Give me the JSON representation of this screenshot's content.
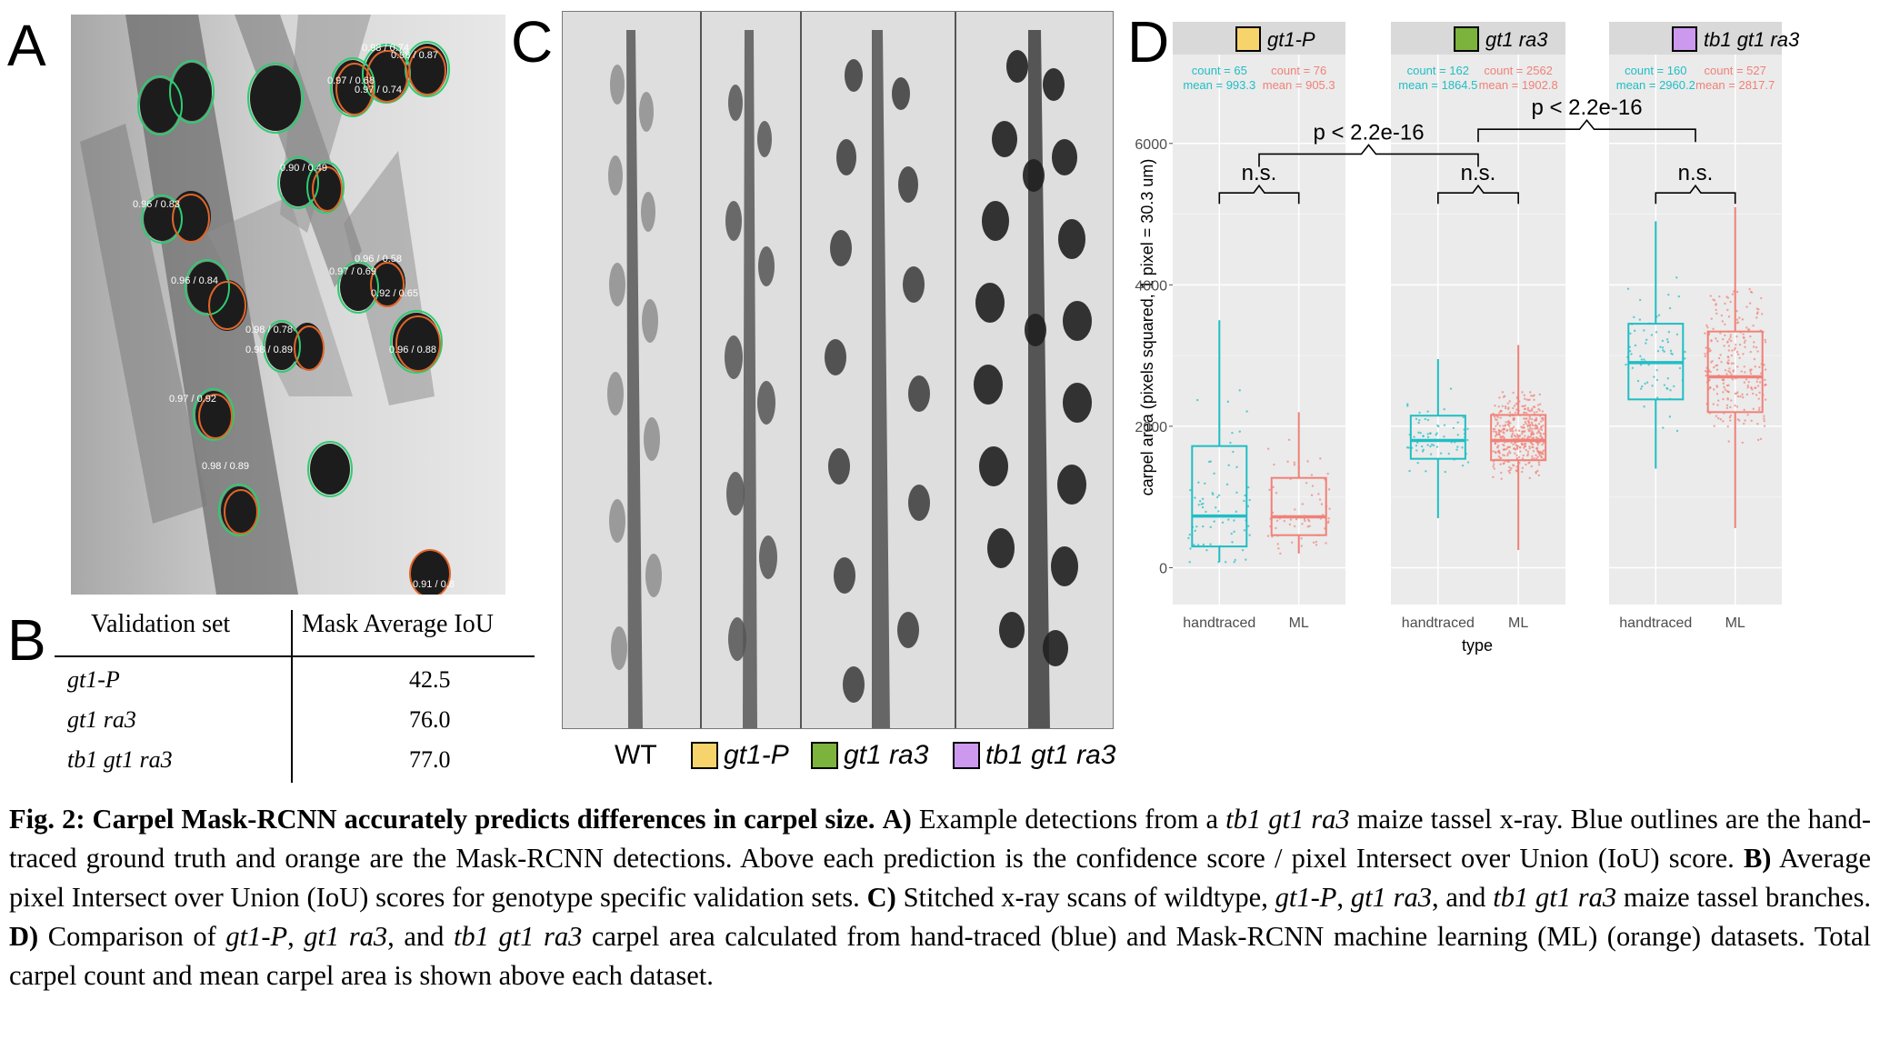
{
  "panels": {
    "a": "A",
    "b": "B",
    "c": "C",
    "d": "D"
  },
  "panelA": {
    "detections": [
      {
        "label": "0.98 / 0.74"
      },
      {
        "label": "0.98 / 0.87"
      },
      {
        "label": "0.97 / 0.68"
      },
      {
        "label": "0.97 / 0.74"
      },
      {
        "label": "0.90 / 0.49"
      },
      {
        "label": "0.96 / 0.83"
      },
      {
        "label": "0.96 / 0.84"
      },
      {
        "label": "0.96 / 0.58"
      },
      {
        "label": "0.97 / 0.69"
      },
      {
        "label": "0.92 / 0.65"
      },
      {
        "label": "0.98 / 0.78"
      },
      {
        "label": "0.98 / 0.89"
      },
      {
        "label": "0.96 / 0.88"
      },
      {
        "label": "0.97 / 0.92"
      },
      {
        "label": "0.98 / 0.89"
      },
      {
        "label": "0.91 / 0.8"
      }
    ]
  },
  "panelB": {
    "headers": [
      "Validation set",
      "Mask Average IoU"
    ],
    "rows": [
      {
        "set": "gt1-P",
        "iou": "42.5"
      },
      {
        "set": "gt1 ra3",
        "iou": "76.0"
      },
      {
        "set": "tb1 gt1 ra3",
        "iou": "77.0"
      }
    ]
  },
  "panelC": {
    "legend": [
      {
        "label": "WT",
        "color": ""
      },
      {
        "label": "gt1-P",
        "color": "#f7d36b"
      },
      {
        "label": "gt1 ra3",
        "color": "#7cb33c"
      },
      {
        "label": "tb1 gt1 ra3",
        "color": "#cc99ee"
      }
    ]
  },
  "chart_data": {
    "type": "boxplot",
    "title": "",
    "xlabel": "type",
    "ylabel": "carpel area (pixels squared, 1 pixel = 30.3 um)",
    "ylim": [
      -200,
      7000
    ],
    "yticks": [
      0,
      2000,
      4000,
      6000
    ],
    "categories": [
      "handtraced",
      "ML"
    ],
    "colors": {
      "handtraced": "#1fbec4",
      "ML": "#f08178"
    },
    "facets": [
      {
        "name": "gt1-P",
        "color": "#f7d36b",
        "stats": [
          {
            "type": "handtraced",
            "count_text": "count = 65",
            "mean_text": "mean = 993.3",
            "q1": 300,
            "median": 730,
            "q3": 1720,
            "whisker_low": 80,
            "whisker_high": 3500
          },
          {
            "type": "ML",
            "count_text": "count = 76",
            "mean_text": "mean = 905.3",
            "q1": 460,
            "median": 720,
            "q3": 1270,
            "whisker_low": 200,
            "whisker_high": 2200
          }
        ],
        "tests": [
          {
            "label": "n.s."
          }
        ]
      },
      {
        "name": "gt1 ra3",
        "color": "#7cb33c",
        "stats": [
          {
            "type": "handtraced",
            "count_text": "count = 162",
            "mean_text": "mean = 1864.5",
            "q1": 1540,
            "median": 1800,
            "q3": 2150,
            "whisker_low": 700,
            "whisker_high": 2950
          },
          {
            "type": "ML",
            "count_text": "count = 2562",
            "mean_text": "mean = 1902.8",
            "q1": 1520,
            "median": 1800,
            "q3": 2160,
            "whisker_low": 250,
            "whisker_high": 3150
          }
        ],
        "tests": [
          {
            "label": "n.s."
          }
        ]
      },
      {
        "name": "tb1 gt1 ra3",
        "color": "#cc99ee",
        "stats": [
          {
            "type": "handtraced",
            "count_text": "count = 160",
            "mean_text": "mean = 2960.2",
            "q1": 2380,
            "median": 2900,
            "q3": 3450,
            "whisker_low": 1400,
            "whisker_high": 4900
          },
          {
            "type": "ML",
            "count_text": "count = 527",
            "mean_text": "mean = 2817.7",
            "q1": 2200,
            "median": 2700,
            "q3": 3340,
            "whisker_low": 560,
            "whisker_high": 5100
          }
        ],
        "tests": [
          {
            "label": "n.s."
          }
        ]
      }
    ],
    "between_tests": [
      {
        "from": "gt1-P",
        "to": "gt1 ra3",
        "label": "p < 2.2e-16"
      },
      {
        "from": "gt1 ra3",
        "to": "tb1 gt1 ra3",
        "label": "p < 2.2e-16"
      }
    ]
  },
  "caption": {
    "fig_label": "Fig. 2: Carpel Mask-RCNN accurately predicts differences in carpel size.",
    "a_label": "A)",
    "a_text1": "Example detections from a",
    "a_geno": "tb1 gt1 ra3",
    "a_text2": "maize tassel x-ray. Blue outlines are the hand-traced ground truth and orange are the Mask-RCNN detections. Above each prediction is the confidence score / pixel Intersect over Union (IoU) score.",
    "b_label": "B)",
    "b_text": "Average pixel Intersect over Union (IoU) scores for genotype specific validation sets.",
    "c_label": "C)",
    "c_text1": "Stitched x-ray scans of wildtype,",
    "c_g1": "gt1-P",
    "c_g2": "gt1 ra3",
    "c_and": ", and",
    "c_g3": "tb1 gt1 ra3",
    "c_text2": "maize tassel branches.",
    "d_label": "D)",
    "d_text1": "Comparison of",
    "d_g1": "gt1-P",
    "d_g2": "gt1 ra3",
    "d_and": ", and",
    "d_g3": "tb1 gt1 ra3",
    "d_text2": "carpel area calculated from hand-traced (blue) and Mask-RCNN machine learning (ML) (orange) datasets. Total carpel count and mean carpel area is shown above each dataset."
  }
}
